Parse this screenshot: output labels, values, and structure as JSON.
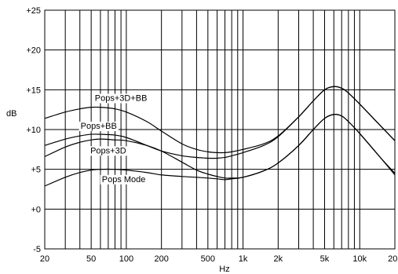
{
  "chart_data": {
    "type": "line",
    "xlabel": "Hz",
    "ylabel": "dB",
    "x_scale": "log",
    "xlim": [
      20,
      20000
    ],
    "ylim": [
      -5,
      25
    ],
    "grid": true,
    "x_ticks": [
      {
        "value": 20,
        "label": "20"
      },
      {
        "value": 50,
        "label": "50"
      },
      {
        "value": 100,
        "label": "100"
      },
      {
        "value": 200,
        "label": "200"
      },
      {
        "value": 500,
        "label": "500"
      },
      {
        "value": 1000,
        "label": "1k"
      },
      {
        "value": 2000,
        "label": "2k"
      },
      {
        "value": 5000,
        "label": "5k"
      },
      {
        "value": 10000,
        "label": "10k"
      },
      {
        "value": 20000,
        "label": "20k"
      }
    ],
    "y_ticks": [
      {
        "value": 25,
        "label": "+25"
      },
      {
        "value": 20,
        "label": "+20"
      },
      {
        "value": 15,
        "label": "+15"
      },
      {
        "value": 10,
        "label": "+10"
      },
      {
        "value": 5,
        "label": "+5"
      },
      {
        "value": 0,
        "label": "+0"
      },
      {
        "value": -5,
        "label": "-5"
      }
    ],
    "series": [
      {
        "name": "Pops+3D+BB",
        "x": [
          20,
          30,
          40,
          50,
          60,
          80,
          100,
          150,
          200,
          300,
          400,
          500,
          600,
          700,
          800,
          1000,
          1500,
          2000,
          3000,
          4000,
          5000,
          6000,
          7000,
          8000,
          10000,
          15000,
          20000
        ],
        "y": [
          11.4,
          12.2,
          12.6,
          12.8,
          12.8,
          12.6,
          12.2,
          11.0,
          9.8,
          8.2,
          7.5,
          7.2,
          7.1,
          7.1,
          7.2,
          7.5,
          8.2,
          9.2,
          11.6,
          13.6,
          15.0,
          15.4,
          15.2,
          14.6,
          13.2,
          10.5,
          8.6
        ]
      },
      {
        "name": "Pops+BB",
        "x": [
          20,
          30,
          40,
          50,
          60,
          80,
          100,
          150,
          200,
          300,
          400,
          500,
          600,
          700,
          800,
          1000,
          1500,
          2000,
          3000,
          4000,
          5000,
          6000,
          7000,
          8000,
          10000,
          15000,
          20000
        ],
        "y": [
          8.0,
          8.8,
          9.2,
          9.4,
          9.4,
          9.3,
          9.0,
          8.0,
          7.3,
          6.7,
          6.5,
          6.4,
          6.4,
          6.5,
          6.7,
          7.1,
          8.0,
          9.1,
          11.6,
          13.6,
          15.0,
          15.4,
          15.2,
          14.6,
          13.2,
          10.5,
          8.6
        ]
      },
      {
        "name": "Pops+3D",
        "x": [
          20,
          30,
          40,
          50,
          60,
          80,
          100,
          150,
          200,
          300,
          400,
          500,
          600,
          700,
          800,
          1000,
          1500,
          2000,
          3000,
          4000,
          5000,
          6000,
          7000,
          8000,
          10000,
          15000,
          20000
        ],
        "y": [
          6.6,
          7.8,
          8.4,
          8.7,
          8.8,
          8.7,
          8.6,
          8.0,
          7.3,
          5.9,
          4.9,
          4.4,
          4.1,
          3.9,
          3.9,
          4.0,
          4.8,
          5.8,
          8.0,
          10.0,
          11.4,
          11.9,
          11.7,
          11.0,
          9.5,
          6.5,
          4.5
        ]
      },
      {
        "name": "Pops Mode",
        "x": [
          20,
          30,
          40,
          50,
          60,
          80,
          100,
          150,
          200,
          300,
          400,
          500,
          600,
          700,
          800,
          1000,
          1500,
          2000,
          3000,
          4000,
          5000,
          6000,
          7000,
          8000,
          10000,
          15000,
          20000
        ],
        "y": [
          2.9,
          4.0,
          4.6,
          4.9,
          5.0,
          5.0,
          4.9,
          4.6,
          4.3,
          4.1,
          4.0,
          3.9,
          3.8,
          3.7,
          3.8,
          4.0,
          4.8,
          5.8,
          8.0,
          10.0,
          11.4,
          11.9,
          11.7,
          11.0,
          9.5,
          6.5,
          4.3
        ]
      }
    ],
    "annotations": [
      {
        "text": "Pops+3D+BB",
        "x": 90,
        "y": 14.0
      },
      {
        "text": "Pops+BB",
        "x": 58,
        "y": 10.5
      },
      {
        "text": "Pops+3D",
        "x": 70,
        "y": 7.4
      },
      {
        "text": "Pops Mode",
        "x": 95,
        "y": 3.8
      }
    ]
  }
}
